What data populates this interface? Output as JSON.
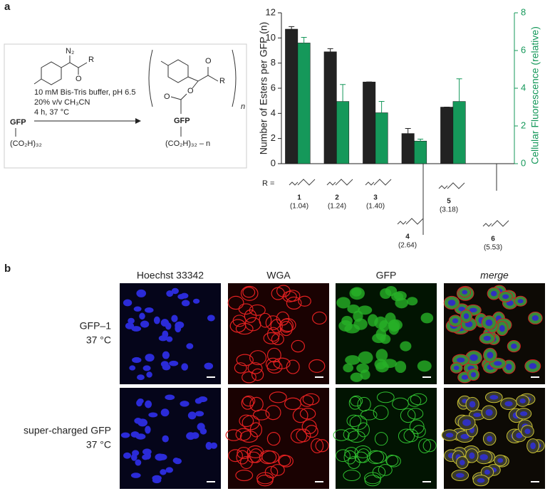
{
  "panels": [
    "a",
    "b"
  ],
  "scheme": {
    "diazo": "N₂",
    "carbonyl": "O",
    "r_group": "R",
    "conditions": [
      "10 mM Bis-Tris buffer, pH 6.5",
      "20% v/v CH₃CN",
      "4 h, 37 °C"
    ],
    "reactant": "GFP",
    "reactant_acids": "(CO₂H)₃₂",
    "product": "GFP",
    "product_acids": "(CO₂H)₃₂ – n",
    "product_oxygens": [
      "O",
      "O",
      "O"
    ],
    "product_r": "R",
    "subscript": "n"
  },
  "chart_data": {
    "type": "bar",
    "ylabel": "Number of Esters per GFP (n)",
    "y2label": "Cellular Fluorescence (relative)",
    "categories": [
      "1",
      "2",
      "3",
      "4",
      "5",
      "6"
    ],
    "category_notes": [
      "(1.04)",
      "(1.24)",
      "(1.40)",
      "(2.64)",
      "(3.18)",
      "(5.53)"
    ],
    "r_prefix": "R =",
    "ylim": [
      0,
      12
    ],
    "yticks": [
      0,
      2,
      4,
      6,
      8,
      10,
      12
    ],
    "y2lim": [
      0,
      8
    ],
    "y2ticks": [
      0,
      2,
      4,
      6,
      8
    ],
    "series": [
      {
        "name": "Number of Esters per GFP",
        "color": "#222222",
        "values": [
          10.7,
          8.9,
          6.5,
          2.4,
          4.5,
          null
        ],
        "errors": [
          0.2,
          0.25,
          0,
          0.4,
          0,
          null
        ]
      },
      {
        "name": "Cellular Fluorescence",
        "color": "#15985a",
        "axis": "y2",
        "values": [
          6.4,
          3.3,
          2.7,
          1.2,
          3.3,
          null
        ],
        "errors": [
          0.3,
          0.9,
          0.6,
          0.1,
          1.2,
          null
        ]
      }
    ]
  },
  "micrographs": {
    "columns": [
      "Hoechst 33342",
      "WGA",
      "GFP",
      "merge"
    ],
    "rows": [
      [
        "GFP–1",
        "37 °C"
      ],
      [
        "super-charged GFP",
        "37 °C"
      ]
    ]
  }
}
